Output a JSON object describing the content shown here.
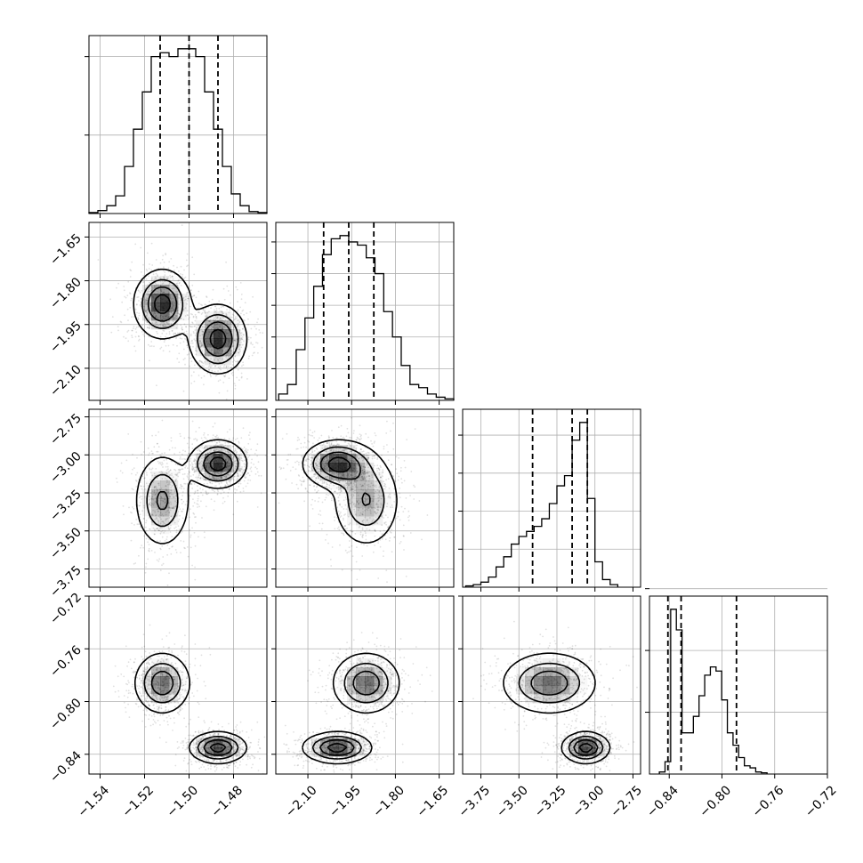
{
  "chart_data": {
    "type": "corner",
    "n_params": 4,
    "grid": true,
    "params": [
      {
        "range": [
          -1.545,
          -1.465
        ],
        "ticks": [
          -1.54,
          -1.52,
          -1.5,
          -1.48
        ],
        "tick_labels": [
          "−1.54",
          "−1.52",
          "−1.50",
          "−1.48"
        ],
        "hist": {
          "edges_start": -1.545,
          "bin_width": 0.004,
          "counts": [
            0.5,
            1.5,
            4,
            9,
            24,
            43,
            62,
            80,
            82,
            80,
            84,
            84,
            80,
            62,
            43,
            24,
            10,
            4,
            1,
            0.5
          ],
          "yticks": [
            40,
            80
          ]
        },
        "quantiles": [
          -1.513,
          -1.5,
          -1.487
        ]
      },
      {
        "range": [
          -2.21,
          -1.6
        ],
        "ticks": [
          -2.1,
          -1.95,
          -1.8,
          -1.65
        ],
        "tick_labels": [
          "−2.10",
          "−1.95",
          "−1.80",
          "−1.65"
        ],
        "hist": {
          "edges_start": -2.2,
          "bin_width": 0.03,
          "counts": [
            2,
            5,
            16,
            26,
            36,
            46,
            51,
            52,
            50,
            49,
            45,
            40,
            28,
            20,
            11,
            5,
            4,
            2,
            1,
            0.5
          ],
          "yticks": [
            10,
            20,
            30,
            40,
            50
          ]
        },
        "quantiles": [
          -2.046,
          -1.96,
          -1.874
        ]
      },
      {
        "range": [
          -3.87,
          -2.7
        ],
        "ticks": [
          -3.75,
          -3.5,
          -3.25,
          -3.0,
          -2.75
        ],
        "tick_labels": [
          "−3.75",
          "−3.50",
          "−3.25",
          "−3.00",
          "−2.75"
        ],
        "hist": {
          "edges_start": -3.85,
          "bin_width": 0.05,
          "counts": [
            0.5,
            1,
            2,
            4,
            8,
            12,
            17,
            20,
            22,
            24,
            27,
            33,
            40,
            44,
            58,
            65,
            35,
            10,
            3,
            1
          ],
          "yticks": [
            15,
            30,
            45,
            60
          ]
        },
        "quantiles": [
          -3.41,
          -3.15,
          -3.05
        ]
      },
      {
        "range": [
          -0.855,
          -0.72
        ],
        "ticks": [
          -0.84,
          -0.8,
          -0.76,
          -0.72
        ],
        "tick_labels": [
          "−0.84",
          "−0.80",
          "−0.76",
          "−0.72"
        ],
        "hist": {
          "edges_start": -0.8475,
          "bin_width": 0.0043,
          "counts": [
            0.5,
            3,
            40,
            35,
            10,
            10,
            14,
            19,
            24,
            26,
            25,
            18,
            10,
            7,
            4,
            2,
            1.5,
            0.5,
            0.3
          ],
          "yticks": [
            15,
            30,
            45
          ]
        },
        "quantiles": [
          -0.841,
          -0.831,
          -0.789
        ]
      }
    ],
    "pairs": [
      {
        "xi": 0,
        "yi": 1,
        "modes": [
          {
            "x": -1.512,
            "y": -1.88,
            "sx": 0.0065,
            "sy": 0.06,
            "w": 1.0
          },
          {
            "x": -1.487,
            "y": -2.0,
            "sx": 0.0065,
            "sy": 0.06,
            "w": 1.0
          }
        ]
      },
      {
        "xi": 0,
        "yi": 2,
        "modes": [
          {
            "x": -1.512,
            "y": -3.3,
            "sx": 0.0065,
            "sy": 0.16,
            "w": 0.8
          },
          {
            "x": -1.487,
            "y": -3.06,
            "sx": 0.0065,
            "sy": 0.08,
            "w": 1.2
          }
        ]
      },
      {
        "xi": 1,
        "yi": 2,
        "modes": [
          {
            "x": -2.0,
            "y": -3.06,
            "sx": 0.06,
            "sy": 0.08,
            "w": 1.2
          },
          {
            "x": -1.9,
            "y": -3.3,
            "sx": 0.06,
            "sy": 0.16,
            "w": 0.8
          }
        ]
      },
      {
        "xi": 0,
        "yi": 3,
        "modes": [
          {
            "x": -1.512,
            "y": -0.786,
            "sx": 0.0065,
            "sy": 0.012,
            "w": 0.9
          },
          {
            "x": -1.487,
            "y": -0.835,
            "sx": 0.0065,
            "sy": 0.006,
            "w": 1.1
          }
        ]
      },
      {
        "xi": 1,
        "yi": 3,
        "modes": [
          {
            "x": -1.9,
            "y": -0.786,
            "sx": 0.06,
            "sy": 0.012,
            "w": 0.9
          },
          {
            "x": -2.0,
            "y": -0.835,
            "sx": 0.06,
            "sy": 0.006,
            "w": 1.1
          }
        ]
      },
      {
        "xi": 2,
        "yi": 3,
        "modes": [
          {
            "x": -3.3,
            "y": -0.786,
            "sx": 0.16,
            "sy": 0.012,
            "w": 0.9
          },
          {
            "x": -3.06,
            "y": -0.835,
            "sx": 0.08,
            "sy": 0.006,
            "w": 1.1
          }
        ]
      }
    ],
    "colors": {
      "axes": "#000000",
      "grid": "#b0b0b0",
      "points": "#000000"
    }
  }
}
